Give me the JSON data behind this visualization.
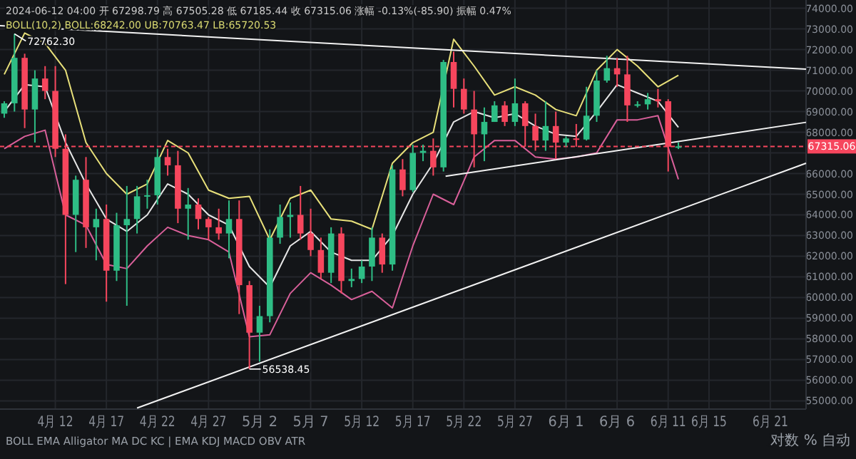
{
  "chart_data": {
    "type": "candlestick",
    "x": [
      "2024-04-07",
      "2024-04-08",
      "2024-04-09",
      "2024-04-10",
      "2024-04-11",
      "2024-04-12",
      "2024-04-13",
      "2024-04-14",
      "2024-04-15",
      "2024-04-16",
      "2024-04-17",
      "2024-04-18",
      "2024-04-19",
      "2024-04-20",
      "2024-04-21",
      "2024-04-22",
      "2024-04-23",
      "2024-04-24",
      "2024-04-25",
      "2024-04-26",
      "2024-04-27",
      "2024-04-28",
      "2024-04-29",
      "2024-04-30",
      "2024-05-01",
      "2024-05-02",
      "2024-05-03",
      "2024-05-04",
      "2024-05-05",
      "2024-05-06",
      "2024-05-07",
      "2024-05-08",
      "2024-05-09",
      "2024-05-10",
      "2024-05-11",
      "2024-05-12",
      "2024-05-13",
      "2024-05-14",
      "2024-05-15",
      "2024-05-16",
      "2024-05-17",
      "2024-05-18",
      "2024-05-19",
      "2024-05-20",
      "2024-05-21",
      "2024-05-22",
      "2024-05-23",
      "2024-05-24",
      "2024-05-25",
      "2024-05-26",
      "2024-05-27",
      "2024-05-28",
      "2024-05-29",
      "2024-05-30",
      "2024-05-31",
      "2024-06-01",
      "2024-06-02",
      "2024-06-03",
      "2024-06-04",
      "2024-06-05",
      "2024-06-06",
      "2024-06-07",
      "2024-06-08",
      "2024-06-09",
      "2024-06-10",
      "2024-06-11",
      "2024-06-12"
    ],
    "ohlc": [
      [
        68900,
        69500,
        68700,
        69400
      ],
      [
        69400,
        72762.3,
        69000,
        71600
      ],
      [
        71600,
        71800,
        68200,
        69100
      ],
      [
        69100,
        71000,
        67500,
        70600
      ],
      [
        70600,
        71200,
        69600,
        70000
      ],
      [
        70000,
        71200,
        66800,
        67200
      ],
      [
        67200,
        67900,
        60650,
        64000
      ],
      [
        64000,
        65900,
        62200,
        65700
      ],
      [
        65700,
        66800,
        62400,
        63400
      ],
      [
        63400,
        64300,
        61800,
        63800
      ],
      [
        63800,
        64500,
        59800,
        61300
      ],
      [
        61300,
        64100,
        60800,
        63500
      ],
      [
        63500,
        65400,
        59600,
        63800
      ],
      [
        63800,
        65400,
        63100,
        64900
      ],
      [
        64900,
        65700,
        64300,
        64950
      ],
      [
        64950,
        67200,
        64500,
        66800
      ],
      [
        66800,
        67200,
        65900,
        66400
      ],
      [
        66400,
        67100,
        63600,
        64300
      ],
      [
        64300,
        65300,
        62800,
        64500
      ],
      [
        64500,
        64800,
        63300,
        63800
      ],
      [
        63800,
        63900,
        62800,
        63400
      ],
      [
        63400,
        64300,
        62800,
        63100
      ],
      [
        63100,
        64700,
        61900,
        63800
      ],
      [
        63800,
        64700,
        59200,
        60600
      ],
      [
        60600,
        60800,
        56538.45,
        58300
      ],
      [
        58300,
        59600,
        56900,
        59100
      ],
      [
        59100,
        63300,
        58800,
        62900
      ],
      [
        62900,
        64500,
        62600,
        63900
      ],
      [
        63900,
        64600,
        62900,
        64000
      ],
      [
        64000,
        65400,
        62800,
        63100
      ],
      [
        63100,
        64300,
        62000,
        62300
      ],
      [
        62300,
        62900,
        60900,
        61200
      ],
      [
        61200,
        63400,
        60700,
        63100
      ],
      [
        63100,
        63400,
        60200,
        60800
      ],
      [
        60800,
        61400,
        60500,
        60900
      ],
      [
        60900,
        61800,
        60700,
        61500
      ],
      [
        61500,
        63400,
        60800,
        62900
      ],
      [
        62900,
        63100,
        61200,
        61600
      ],
      [
        61600,
        66400,
        61300,
        66200
      ],
      [
        66200,
        66700,
        64900,
        65200
      ],
      [
        65200,
        67400,
        65100,
        67000
      ],
      [
        67000,
        67400,
        66600,
        67100
      ],
      [
        67100,
        67700,
        65900,
        66300
      ],
      [
        66300,
        71500,
        66100,
        71400
      ],
      [
        71400,
        71900,
        69200,
        70100
      ],
      [
        70100,
        70600,
        68900,
        69100
      ],
      [
        69100,
        70000,
        66300,
        67900
      ],
      [
        67900,
        69200,
        66600,
        68500
      ],
      [
        68500,
        69500,
        68500,
        69300
      ],
      [
        69300,
        69500,
        68300,
        68500
      ],
      [
        68500,
        70600,
        68300,
        69400
      ],
      [
        69400,
        69500,
        67300,
        68300
      ],
      [
        68300,
        68900,
        67100,
        67600
      ],
      [
        67600,
        69500,
        67100,
        68300
      ],
      [
        68300,
        69000,
        66700,
        67500
      ],
      [
        67500,
        67800,
        67300,
        67700
      ],
      [
        67700,
        68400,
        67300,
        67650
      ],
      [
        67650,
        70200,
        67600,
        68800
      ],
      [
        68800,
        71000,
        68500,
        70500
      ],
      [
        70500,
        71700,
        70400,
        71100
      ],
      [
        71100,
        71600,
        70200,
        70800
      ],
      [
        70800,
        71700,
        68500,
        69300
      ],
      [
        69300,
        69500,
        69200,
        69350
      ],
      [
        69350,
        69900,
        69100,
        69600
      ],
      [
        69600,
        70100,
        69200,
        69500
      ],
      [
        69500,
        69600,
        66100,
        67300
      ],
      [
        67300,
        67505.28,
        67185.44,
        67315.06
      ]
    ],
    "colors": [
      "#2ebd85",
      "#2ebd85",
      "#f6465d",
      "#2ebd85",
      "#f6465d",
      "#f6465d",
      "#f6465d",
      "#2ebd85",
      "#f6465d",
      "#2ebd85",
      "#f6465d",
      "#2ebd85",
      "#2ebd85",
      "#2ebd85",
      "#2ebd85",
      "#2ebd85",
      "#f6465d",
      "#f6465d",
      "#2ebd85",
      "#f6465d",
      "#f6465d",
      "#f6465d",
      "#2ebd85",
      "#f6465d",
      "#f6465d",
      "#2ebd85",
      "#2ebd85",
      "#2ebd85",
      "#2ebd85",
      "#f6465d",
      "#f6465d",
      "#f6465d",
      "#2ebd85",
      "#f6465d",
      "#2ebd85",
      "#2ebd85",
      "#2ebd85",
      "#f6465d",
      "#2ebd85",
      "#f6465d",
      "#2ebd85",
      "#2ebd85",
      "#f6465d",
      "#2ebd85",
      "#f6465d",
      "#f6465d",
      "#f6465d",
      "#2ebd85",
      "#2ebd85",
      "#f6465d",
      "#2ebd85",
      "#f6465d",
      "#f6465d",
      "#2ebd85",
      "#f6465d",
      "#2ebd85",
      "#f6465d",
      "#2ebd85",
      "#2ebd85",
      "#2ebd85",
      "#f6465d",
      "#f6465d",
      "#2ebd85",
      "#2ebd85",
      "#f6465d",
      "#f6465d",
      "#2ebd85"
    ],
    "series": [
      {
        "type": "line",
        "color": "#e8e07a",
        "x": [
          "2024-04-07",
          "2024-04-09",
          "2024-04-11",
          "2024-04-13",
          "2024-04-15",
          "2024-04-17",
          "2024-04-19",
          "2024-04-21",
          "2024-04-23",
          "2024-04-25",
          "2024-04-27",
          "2024-04-29",
          "2024-05-01",
          "2024-05-03",
          "2024-05-05",
          "2024-05-07",
          "2024-05-09",
          "2024-05-11",
          "2024-05-13",
          "2024-05-15",
          "2024-05-17",
          "2024-05-19",
          "2024-05-21",
          "2024-05-23",
          "2024-05-25",
          "2024-05-27",
          "2024-05-29",
          "2024-05-31",
          "2024-06-02",
          "2024-06-04",
          "2024-06-06",
          "2024-06-08",
          "2024-06-10",
          "2024-06-12"
        ],
        "values": [
          70800,
          72800,
          72300,
          71000,
          67500,
          66000,
          65000,
          65500,
          67600,
          67000,
          65200,
          64800,
          64900,
          62800,
          64800,
          65200,
          63800,
          63700,
          63300,
          66500,
          67500,
          68000,
          72500,
          71200,
          69800,
          70200,
          69800,
          69100,
          68800,
          71000,
          72000,
          71200,
          70200,
          70760
        ]
      },
      {
        "type": "line",
        "color": "#e6e6e6",
        "x": [
          "2024-04-07",
          "2024-04-09",
          "2024-04-11",
          "2024-04-13",
          "2024-04-15",
          "2024-04-17",
          "2024-04-19",
          "2024-04-21",
          "2024-04-23",
          "2024-04-25",
          "2024-04-27",
          "2024-04-29",
          "2024-05-01",
          "2024-05-03",
          "2024-05-05",
          "2024-05-07",
          "2024-05-09",
          "2024-05-11",
          "2024-05-13",
          "2024-05-15",
          "2024-05-17",
          "2024-05-19",
          "2024-05-21",
          "2024-05-23",
          "2024-05-25",
          "2024-05-27",
          "2024-05-29",
          "2024-05-31",
          "2024-06-02",
          "2024-06-04",
          "2024-06-06",
          "2024-06-08",
          "2024-06-10",
          "2024-06-12"
        ],
        "values": [
          69000,
          70300,
          70200,
          67500,
          65500,
          63800,
          63200,
          64000,
          65500,
          65000,
          64000,
          63500,
          61500,
          60500,
          62500,
          63200,
          62200,
          61800,
          61800,
          63000,
          65000,
          66500,
          68500,
          69000,
          68700,
          68900,
          68300,
          67900,
          67800,
          69000,
          70300,
          69900,
          69500,
          68240
        ]
      },
      {
        "type": "line",
        "color": "#d9609a",
        "x": [
          "2024-04-07",
          "2024-04-09",
          "2024-04-11",
          "2024-04-13",
          "2024-04-15",
          "2024-04-17",
          "2024-04-19",
          "2024-04-21",
          "2024-04-23",
          "2024-04-25",
          "2024-04-27",
          "2024-04-29",
          "2024-05-01",
          "2024-05-03",
          "2024-05-05",
          "2024-05-07",
          "2024-05-09",
          "2024-05-11",
          "2024-05-13",
          "2024-05-15",
          "2024-05-17",
          "2024-05-19",
          "2024-05-21",
          "2024-05-23",
          "2024-05-25",
          "2024-05-27",
          "2024-05-29",
          "2024-05-31",
          "2024-06-02",
          "2024-06-04",
          "2024-06-06",
          "2024-06-08",
          "2024-06-10",
          "2024-06-12"
        ],
        "values": [
          67200,
          67800,
          68100,
          64000,
          63500,
          61600,
          61400,
          62500,
          63400,
          63000,
          62800,
          62200,
          58100,
          58200,
          60200,
          61200,
          60600,
          59900,
          60300,
          59500,
          62500,
          65000,
          64500,
          66800,
          67600,
          67600,
          66800,
          66700,
          66800,
          67000,
          68600,
          68600,
          68800,
          65720
        ]
      },
      {
        "type": "line",
        "color": "#f2f2f2",
        "x": [
          "2024-04-06T14:00",
          "2024-06-24T12:00"
        ],
        "values": [
          73160,
          71050
        ]
      },
      {
        "type": "line",
        "color": "#f2f2f2",
        "x": [
          "2024-05-20T05:00",
          "2024-06-24T12:00"
        ],
        "values": [
          65870,
          68480
        ]
      },
      {
        "type": "line",
        "color": "#f2f2f2",
        "x": [
          "2024-04-20",
          "2024-06-24T12:00"
        ],
        "values": [
          54650,
          66500
        ]
      }
    ],
    "xlim": [
      "2024-04-06T14:00",
      "2024-06-24T12:00"
    ],
    "xticks": [
      {
        "value": "2024-04-12",
        "label": "4月 12"
      },
      {
        "value": "2024-04-17",
        "label": "4月 17"
      },
      {
        "value": "2024-04-22",
        "label": "4月 22"
      },
      {
        "value": "2024-04-27",
        "label": "4月 27"
      },
      {
        "value": "2024-05-02",
        "label": "5月 2"
      },
      {
        "value": "2024-05-07",
        "label": "5月 7"
      },
      {
        "value": "2024-05-12",
        "label": "5月 12"
      },
      {
        "value": "2024-05-17",
        "label": "5月 17"
      },
      {
        "value": "2024-05-22",
        "label": "5月 22"
      },
      {
        "value": "2024-05-27",
        "label": "5月 27"
      },
      {
        "value": "2024-06-01",
        "label": "6月 1"
      },
      {
        "value": "2024-06-06",
        "label": "6月 6"
      },
      {
        "value": "2024-06-11",
        "label": "6月 11"
      },
      {
        "value": "2024-06-15",
        "label": "6月 15"
      },
      {
        "value": "2024-06-21",
        "label": "6月 21"
      }
    ],
    "ylim": [
      54600,
      74400
    ],
    "yticks": [
      {
        "value": 55000,
        "label": "55000.00"
      },
      {
        "value": 56000,
        "label": "56000.00"
      },
      {
        "value": 57000,
        "label": "57000.00"
      },
      {
        "value": 58000,
        "label": "58000.00"
      },
      {
        "value": 59000,
        "label": "59000.00"
      },
      {
        "value": 60000,
        "label": "60000.00"
      },
      {
        "value": 61000,
        "label": "61000.00"
      },
      {
        "value": 62000,
        "label": "62000.00"
      },
      {
        "value": 63000,
        "label": "63000.00"
      },
      {
        "value": 64000,
        "label": "64000.00"
      },
      {
        "value": 65000,
        "label": "65000.00"
      },
      {
        "value": 66000,
        "label": "66000.00"
      },
      {
        "value": 67000,
        "label": null
      },
      {
        "value": 68000,
        "label": "68000.00"
      },
      {
        "value": 69000,
        "label": "69000.00"
      },
      {
        "value": 70000,
        "label": "70000.00"
      },
      {
        "value": 71000,
        "label": "71000.00"
      },
      {
        "value": 72000,
        "label": "72000.00"
      },
      {
        "value": 73000,
        "label": "73000.00"
      },
      {
        "value": 74000,
        "label": "74000.00"
      }
    ],
    "grid": true,
    "ref_lines": [
      {
        "axis": "y",
        "value": 67315.06,
        "label": "67315.06",
        "color": "#f6465d",
        "line_style": "dashed"
      }
    ],
    "annotations": [
      "2024-06-12 04:00 开 67298.79 高 67505.28 低 67185.44 收 67315.06 涨幅 -0.13%(-85.90) 振幅 0.47%",
      "BOLL(10,2) BOLL:68242.00 UB:70763.47 LB:65720.53",
      {
        "text": "72762.30",
        "x": "2024-04-08",
        "y": 72762.3
      },
      {
        "text": "56538.45",
        "x": "2024-05-01",
        "y": 56538.45
      },
      "BOLL EMA Alligator MA DC KC | EMA KDJ MACD OBV ATR",
      "对数 % 自动"
    ]
  }
}
